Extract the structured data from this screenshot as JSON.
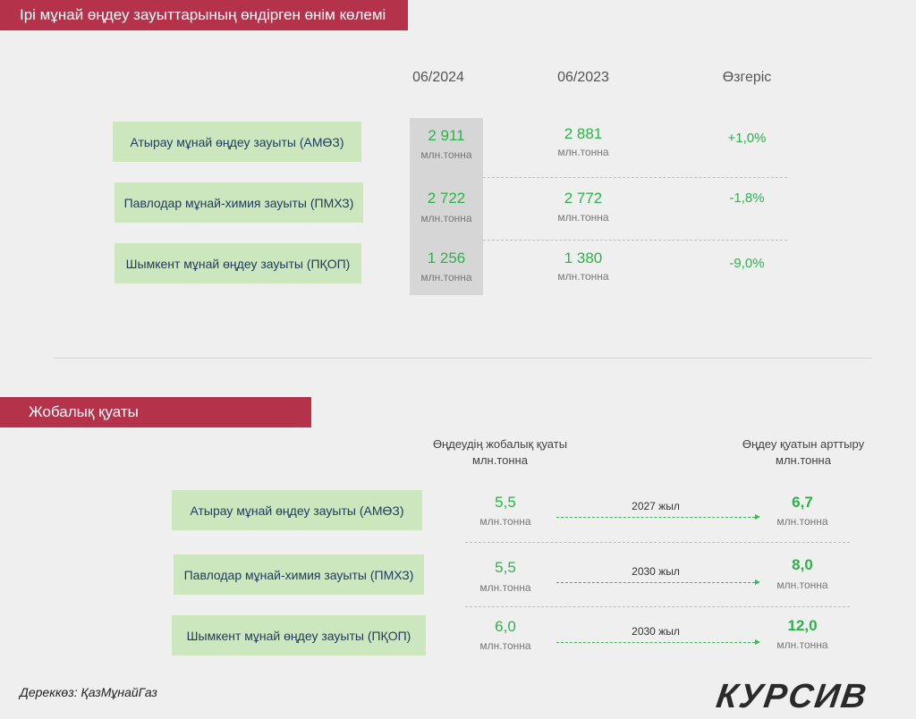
{
  "section1": {
    "title": "Ірі мұнай өңдеу зауыттарының өндірген өнім көлемі",
    "columns": [
      "06/2024",
      "06/2023",
      "Өзгеріс"
    ],
    "rows": [
      {
        "plant": "Атырау мұнай өңдеу зауыты (АМӨЗ)",
        "v2024": "2 911",
        "v2023": "2 881",
        "unit": "млн.тонна",
        "change": "+1,0%"
      },
      {
        "plant": "Павлодар мұнай-химия зауыты (ПМХЗ)",
        "v2024": "2 722",
        "v2023": "2 772",
        "unit": "млн.тонна",
        "change": "-1,8%"
      },
      {
        "plant": "Шымкент мұнай өңдеу зауыты (ПҚОП)",
        "v2024": "1 256",
        "v2023": "1 380",
        "unit": "млн.тонна",
        "change": "-9,0%"
      }
    ]
  },
  "section2": {
    "title": "Жобалық қуаты",
    "col_design": "Өңдеудің жобалық қуаты",
    "col_design_unit": "млн.тонна",
    "col_expand": "Өңдеу қуатын арттыру",
    "col_expand_unit": "млн.тонна",
    "rows": [
      {
        "plant": "Атырау мұнай өңдеу зауыты (АМӨЗ)",
        "design": "5,5",
        "year": "2027 жыл",
        "expanded": "6,7",
        "unit": "млн.тонна"
      },
      {
        "plant": "Павлодар мұнай-химия зауыты (ПМХЗ)",
        "design": "5,5",
        "year": "2030 жыл",
        "expanded": "8,0",
        "unit": "млн.тонна"
      },
      {
        "plant": "Шымкент мұнай өңдеу зауыты (ПҚОП)",
        "design": "6,0",
        "year": "2030 жыл",
        "expanded": "12,0",
        "unit": "млн.тонна"
      }
    ]
  },
  "footer": {
    "source": "Дереккөз: ҚазМұнайГаз",
    "logo": "КУРСИВ"
  }
}
